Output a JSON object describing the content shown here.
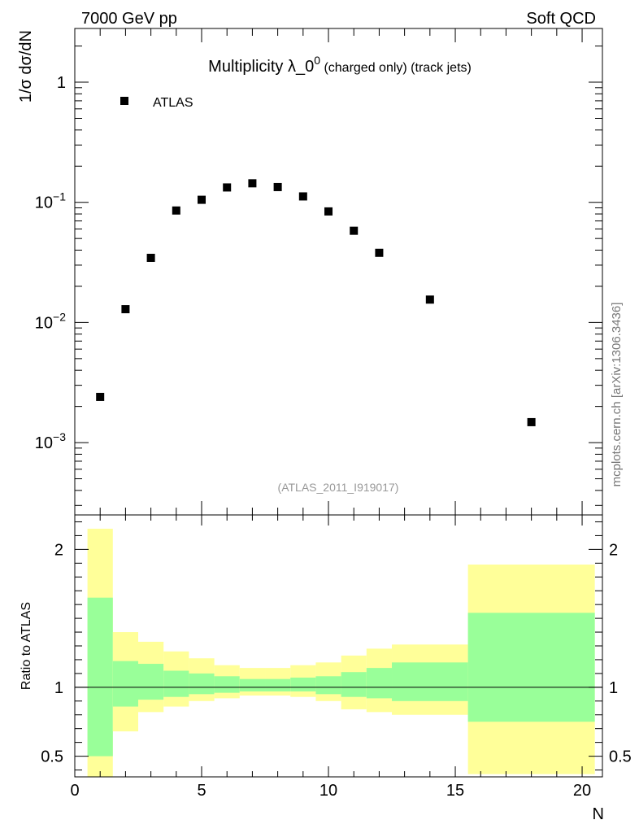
{
  "header": {
    "left": "7000 GeV pp",
    "right": "Soft QCD"
  },
  "title": {
    "main": "Multiplicity λ_0",
    "superscript": "0",
    "suffix": " (charged only) (track jets)"
  },
  "side_label": "mcplots.cern.ch [arXiv:1306.3436]",
  "analysis_label": "(ATLAS_2011_I919017)",
  "colors": {
    "band_outer": "#ffff99",
    "band_inner": "#99ff99",
    "marker": "#000000"
  },
  "chart_data": [
    {
      "type": "scatter",
      "ylabel": "1/σ dσ/dN",
      "yscale": "log",
      "xlim": [
        0,
        20.8
      ],
      "ylim": [
        0.00025,
        2.8
      ],
      "legend": {
        "label": "ATLAS",
        "placement": "top-left"
      },
      "yticks": [
        {
          "value": 1,
          "label": "1"
        },
        {
          "value": 0.1,
          "base": "10",
          "exp": "−1"
        },
        {
          "value": 0.01,
          "base": "10",
          "exp": "−2"
        },
        {
          "value": 0.001,
          "base": "10",
          "exp": "−3"
        }
      ],
      "series": [
        {
          "name": "ATLAS",
          "x": [
            1,
            2,
            3,
            4,
            5,
            6,
            7,
            8,
            9,
            10,
            11,
            12,
            14,
            18
          ],
          "y": [
            0.0024,
            0.0129,
            0.0345,
            0.0855,
            0.105,
            0.133,
            0.144,
            0.134,
            0.112,
            0.084,
            0.058,
            0.038,
            0.0155,
            0.00148
          ]
        }
      ]
    },
    {
      "type": "area",
      "ylabel": "Ratio to ATLAS",
      "xlabel": "N",
      "xlim": [
        0,
        20.8
      ],
      "ylim": [
        0.35,
        2.25
      ],
      "reference_line": 1,
      "yticks": [
        {
          "value": 2,
          "label": "2"
        },
        {
          "value": 1,
          "label": "1"
        },
        {
          "value": 0.5,
          "label": "0.5"
        }
      ],
      "xticks": [
        {
          "value": 0,
          "label": "0"
        },
        {
          "value": 5,
          "label": "5"
        },
        {
          "value": 10,
          "label": "10"
        },
        {
          "value": 15,
          "label": "15"
        },
        {
          "value": 20,
          "label": "20"
        }
      ],
      "bins": [
        {
          "lo": 0.5,
          "hi": 1.5,
          "outer": [
            0.35,
            2.15
          ],
          "inner": [
            0.5,
            1.65
          ]
        },
        {
          "lo": 1.5,
          "hi": 2.5,
          "outer": [
            0.68,
            1.4
          ],
          "inner": [
            0.86,
            1.19
          ]
        },
        {
          "lo": 2.5,
          "hi": 3.5,
          "outer": [
            0.82,
            1.33
          ],
          "inner": [
            0.91,
            1.17
          ]
        },
        {
          "lo": 3.5,
          "hi": 4.5,
          "outer": [
            0.86,
            1.26
          ],
          "inner": [
            0.93,
            1.12
          ]
        },
        {
          "lo": 4.5,
          "hi": 5.5,
          "outer": [
            0.9,
            1.21
          ],
          "inner": [
            0.95,
            1.1
          ]
        },
        {
          "lo": 5.5,
          "hi": 6.5,
          "outer": [
            0.92,
            1.16
          ],
          "inner": [
            0.96,
            1.08
          ]
        },
        {
          "lo": 6.5,
          "hi": 7.5,
          "outer": [
            0.94,
            1.14
          ],
          "inner": [
            0.97,
            1.06
          ]
        },
        {
          "lo": 7.5,
          "hi": 8.5,
          "outer": [
            0.94,
            1.14
          ],
          "inner": [
            0.97,
            1.06
          ]
        },
        {
          "lo": 8.5,
          "hi": 9.5,
          "outer": [
            0.93,
            1.16
          ],
          "inner": [
            0.97,
            1.07
          ]
        },
        {
          "lo": 9.5,
          "hi": 10.5,
          "outer": [
            0.9,
            1.18
          ],
          "inner": [
            0.95,
            1.08
          ]
        },
        {
          "lo": 10.5,
          "hi": 11.5,
          "outer": [
            0.84,
            1.23
          ],
          "inner": [
            0.93,
            1.11
          ]
        },
        {
          "lo": 11.5,
          "hi": 12.5,
          "outer": [
            0.82,
            1.28
          ],
          "inner": [
            0.92,
            1.14
          ]
        },
        {
          "lo": 12.5,
          "hi": 15.5,
          "outer": [
            0.8,
            1.31
          ],
          "inner": [
            0.9,
            1.18
          ]
        },
        {
          "lo": 15.5,
          "hi": 20.5,
          "outer": [
            0.37,
            1.89
          ],
          "inner": [
            0.75,
            1.54
          ]
        }
      ]
    }
  ]
}
